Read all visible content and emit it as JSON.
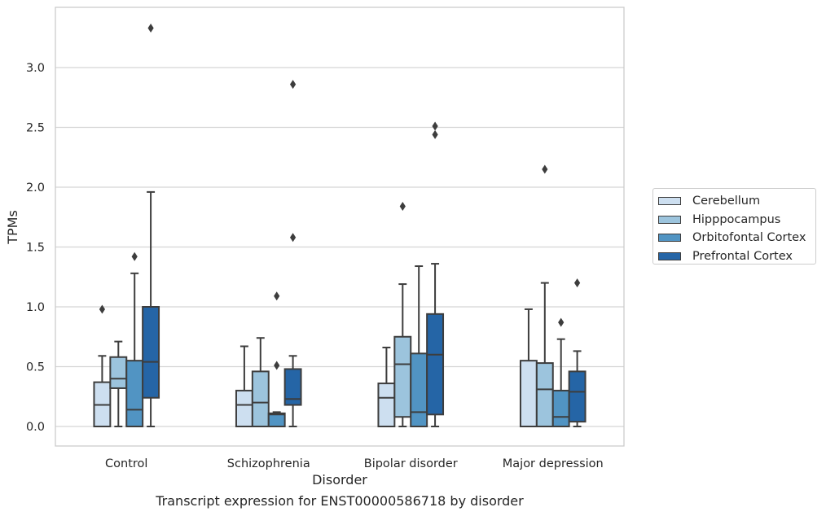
{
  "caption": "Transcript expression for ENST00000586718 by disorder",
  "chart_data": {
    "type": "box",
    "xlabel": "Disorder",
    "ylabel": "TPMs",
    "ylim": [
      -0.16,
      3.5
    ],
    "yticks": [
      0.0,
      0.5,
      1.0,
      1.5,
      2.0,
      2.5,
      3.0
    ],
    "ytick_labels": [
      "0.0",
      "0.5",
      "1.0",
      "1.5",
      "2.0",
      "2.5",
      "3.0"
    ],
    "grid": "horizontal",
    "legend_placement": "outside-right",
    "categories": [
      "Control",
      "Schizophrenia",
      "Bipolar disorder",
      "Major depression"
    ],
    "series": [
      {
        "name": "Cerebellum",
        "color": "#cddff0",
        "boxes": [
          {
            "whislo": 0.0,
            "q1": 0.0,
            "med": 0.18,
            "q3": 0.37,
            "whishi": 0.59,
            "fliers": [
              0.98
            ]
          },
          {
            "whislo": 0.0,
            "q1": 0.0,
            "med": 0.18,
            "q3": 0.3,
            "whishi": 0.67,
            "fliers": []
          },
          {
            "whislo": 0.0,
            "q1": 0.0,
            "med": 0.24,
            "q3": 0.36,
            "whishi": 0.66,
            "fliers": []
          },
          {
            "whislo": 0.0,
            "q1": 0.0,
            "med": 0.0,
            "q3": 0.55,
            "whishi": 0.98,
            "fliers": []
          }
        ]
      },
      {
        "name": "Hipppocampus",
        "color": "#9cc4dd",
        "boxes": [
          {
            "whislo": 0.0,
            "q1": 0.32,
            "med": 0.4,
            "q3": 0.58,
            "whishi": 0.71,
            "fliers": []
          },
          {
            "whislo": 0.0,
            "q1": 0.0,
            "med": 0.2,
            "q3": 0.46,
            "whishi": 0.74,
            "fliers": []
          },
          {
            "whislo": 0.0,
            "q1": 0.08,
            "med": 0.52,
            "q3": 0.75,
            "whishi": 1.19,
            "fliers": [
              1.84
            ]
          },
          {
            "whislo": 0.0,
            "q1": 0.0,
            "med": 0.31,
            "q3": 0.53,
            "whishi": 1.2,
            "fliers": [
              2.15
            ]
          }
        ]
      },
      {
        "name": "Orbitofontal Cortex",
        "color": "#5194c3",
        "boxes": [
          {
            "whislo": 0.0,
            "q1": 0.0,
            "med": 0.14,
            "q3": 0.55,
            "whishi": 1.28,
            "fliers": [
              1.42
            ]
          },
          {
            "whislo": 0.0,
            "q1": 0.0,
            "med": 0.1,
            "q3": 0.11,
            "whishi": 0.12,
            "fliers": [
              1.09,
              0.51
            ]
          },
          {
            "whislo": 0.0,
            "q1": 0.0,
            "med": 0.12,
            "q3": 0.61,
            "whishi": 1.34,
            "fliers": []
          },
          {
            "whislo": 0.0,
            "q1": 0.0,
            "med": 0.08,
            "q3": 0.3,
            "whishi": 0.73,
            "fliers": [
              0.87
            ]
          }
        ]
      },
      {
        "name": "Prefrontal Cortex",
        "color": "#2565a6",
        "boxes": [
          {
            "whislo": 0.0,
            "q1": 0.24,
            "med": 0.54,
            "q3": 1.0,
            "whishi": 1.96,
            "fliers": [
              3.33
            ]
          },
          {
            "whislo": 0.0,
            "q1": 0.18,
            "med": 0.23,
            "q3": 0.48,
            "whishi": 0.59,
            "fliers": [
              2.86,
              1.58
            ]
          },
          {
            "whislo": 0.0,
            "q1": 0.1,
            "med": 0.6,
            "q3": 0.94,
            "whishi": 1.36,
            "fliers": [
              2.51,
              2.44
            ]
          },
          {
            "whislo": 0.0,
            "q1": 0.04,
            "med": 0.29,
            "q3": 0.46,
            "whishi": 0.63,
            "fliers": [
              1.2
            ]
          }
        ]
      }
    ]
  }
}
